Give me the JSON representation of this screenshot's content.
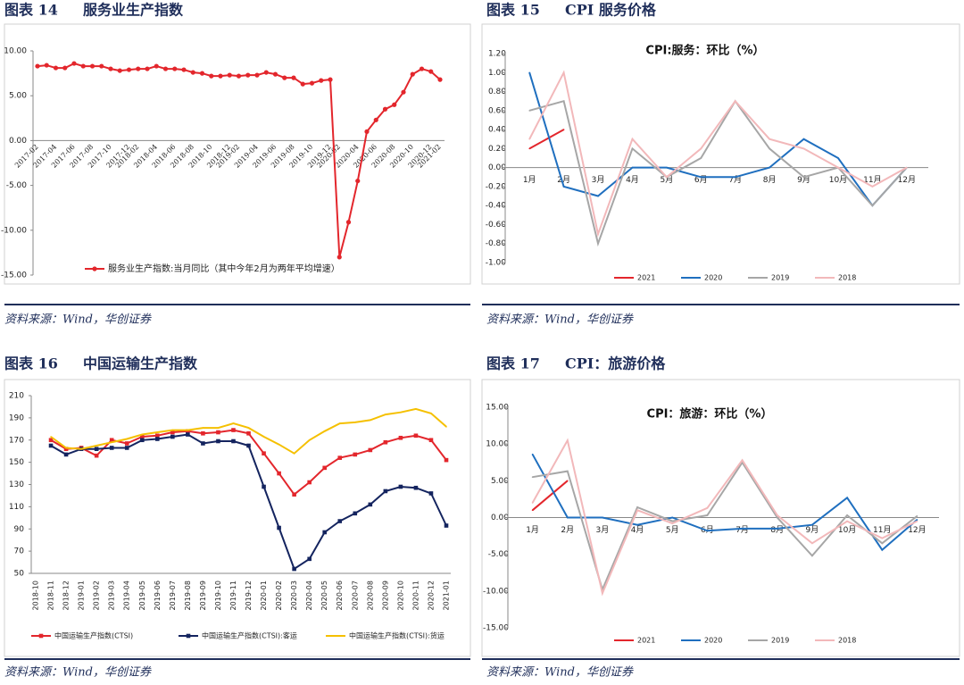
{
  "chart_data": [
    {
      "type": "line",
      "figure_label": "图表 14",
      "title": "服务业生产指数",
      "source": "资料来源：Wind，华创证券",
      "legend": "bottom",
      "categories": [
        "2017-02",
        null,
        "2017-04",
        null,
        "2017-06",
        null,
        "2017-08",
        null,
        "2017-10",
        null,
        "2017-12",
        "2018-02",
        null,
        "2018-04",
        null,
        "2018-06",
        null,
        "2018-08",
        null,
        "2018-10",
        null,
        "2018-12",
        "2019-02",
        null,
        "2019-04",
        null,
        "2019-06",
        null,
        "2019-08",
        null,
        "2019-10",
        null,
        "2019-12",
        "2020-02",
        null,
        "2020-04",
        null,
        "2020-06",
        null,
        "2020-08",
        null,
        "2020-10",
        null,
        "2020-12",
        "2021-02"
      ],
      "series": [
        {
          "name": "服务业生产指数:当月同比（其中今年2月为两年平均增速）",
          "color": "#e3262c",
          "values": [
            8.3,
            8.4,
            8.1,
            8.1,
            8.6,
            8.3,
            8.3,
            8.3,
            8.0,
            7.8,
            7.9,
            8.0,
            8.0,
            8.3,
            8.0,
            8.0,
            7.9,
            7.6,
            7.5,
            7.2,
            7.2,
            7.3,
            7.2,
            7.3,
            7.3,
            7.6,
            7.4,
            7.0,
            7.0,
            6.3,
            6.4,
            6.7,
            6.8,
            -13.0,
            -9.1,
            -4.5,
            1.0,
            2.3,
            3.5,
            4.0,
            5.4,
            7.4,
            8.0,
            7.7,
            6.8
          ]
        }
      ],
      "ylim": [
        -15,
        10
      ],
      "yticks": [
        {
          "value": 10,
          "label": "10.00"
        },
        {
          "value": 5,
          "label": "5.00"
        },
        {
          "value": 0,
          "label": "0.00"
        },
        {
          "value": -5,
          "label": "-5.00"
        },
        {
          "value": -10,
          "label": "-10.00"
        },
        {
          "value": -15,
          "label": "-15.00"
        }
      ]
    },
    {
      "type": "line",
      "figure_label": "图表 15",
      "title": "CPI 服务价格",
      "chart_title": "CPI:服务：环比（%）",
      "source": "资料来源：Wind，华创证券",
      "legend": "bottom",
      "categories": [
        "1月",
        "2月",
        "3月",
        "4月",
        "5月",
        "6月",
        "7月",
        "8月",
        "9月",
        "10月",
        "11月",
        "12月"
      ],
      "series": [
        {
          "name": "2021",
          "color": "#e3262c",
          "values": [
            0.2,
            0.4,
            null,
            null,
            null,
            null,
            null,
            null,
            null,
            null,
            null,
            null
          ]
        },
        {
          "name": "2020",
          "color": "#1f6fbf",
          "values": [
            1.0,
            -0.2,
            -0.3,
            0.0,
            0.0,
            -0.1,
            -0.1,
            0.0,
            0.3,
            0.1,
            -0.4,
            0.0
          ]
        },
        {
          "name": "2019",
          "color": "#a6a6a6",
          "values": [
            0.6,
            0.7,
            -0.8,
            0.2,
            -0.1,
            0.1,
            0.7,
            0.2,
            -0.1,
            0.0,
            -0.4,
            0.0
          ]
        },
        {
          "name": "2018",
          "color": "#f2b8ba",
          "values": [
            0.3,
            1.0,
            -0.7,
            0.3,
            -0.1,
            0.2,
            0.7,
            0.3,
            0.2,
            0.0,
            -0.2,
            0.0
          ]
        }
      ],
      "ylim": [
        -1,
        1.2
      ],
      "yticks": [
        {
          "value": 1.2,
          "label": "1.20"
        },
        {
          "value": 1,
          "label": "1.00"
        },
        {
          "value": 0.8,
          "label": "0.80"
        },
        {
          "value": 0.6,
          "label": "0.60"
        },
        {
          "value": 0.4,
          "label": "0.40"
        },
        {
          "value": 0.2,
          "label": "0.20"
        },
        {
          "value": 0,
          "label": "0.00"
        },
        {
          "value": -0.2,
          "label": "-0.20"
        },
        {
          "value": -0.4,
          "label": "-0.40"
        },
        {
          "value": -0.6,
          "label": "-0.60"
        },
        {
          "value": -0.8,
          "label": "-0.80"
        },
        {
          "value": -1,
          "label": "-1.00"
        }
      ]
    },
    {
      "type": "line",
      "figure_label": "图表 16",
      "title": "中国运输生产指数",
      "source": "资料来源：Wind，华创证券",
      "legend": "bottom",
      "categories": [
        "2018-10",
        "2018-11",
        "2018-12",
        "2019-01",
        "2019-02",
        "2019-03",
        "2019-04",
        "2019-05",
        "2019-06",
        "2019-07",
        "2019-08",
        "2019-09",
        "2019-10",
        "2019-11",
        "2019-12",
        "2020-01",
        "2020-02",
        "2020-03",
        "2020-04",
        "2020-05",
        "2020-06",
        "2020-07",
        "2020-08",
        "2020-09",
        "2020-10",
        "2020-11",
        "2020-12",
        "2021-01"
      ],
      "series": [
        {
          "name": "中国运输生产指数(CTSI)",
          "color": "#e3262c",
          "values": [
            null,
            170,
            162,
            163,
            156,
            170,
            167,
            173,
            174,
            177,
            178,
            176,
            177,
            179,
            176,
            158,
            140,
            121,
            132,
            145,
            154,
            157,
            161,
            168,
            172,
            174,
            170,
            152
          ]
        },
        {
          "name": "中国运输生产指数(CTSI):客运",
          "color": "#14245f",
          "values": [
            null,
            165,
            157,
            162,
            162,
            163,
            163,
            170,
            171,
            173,
            175,
            167,
            169,
            169,
            165,
            128,
            91,
            54,
            63,
            87,
            97,
            104,
            112,
            124,
            128,
            127,
            122,
            93
          ]
        },
        {
          "name": "中国运输生产指数(CTSI):货运",
          "color": "#f5c000",
          "values": [
            null,
            173,
            163,
            162,
            165,
            168,
            171,
            175,
            177,
            179,
            179,
            181,
            181,
            185,
            181,
            173,
            166,
            158,
            170,
            178,
            185,
            186,
            188,
            193,
            195,
            198,
            194,
            182
          ]
        }
      ],
      "ylim": [
        50,
        210
      ],
      "yticks": [
        50,
        70,
        90,
        110,
        130,
        150,
        170,
        190,
        210
      ]
    },
    {
      "type": "line",
      "figure_label": "图表 17",
      "title": "CPI：旅游价格",
      "chart_title": "CPI：旅游：环比（%）",
      "source": "资料来源：Wind，华创证券",
      "legend": "bottom",
      "categories": [
        "1月",
        "2月",
        "3月",
        "4月",
        "5月",
        "6月",
        "7月",
        "8月",
        "9月",
        "10月",
        "11月",
        "12月"
      ],
      "series": [
        {
          "name": "2021",
          "color": "#e3262c",
          "values": [
            1.0,
            5.0,
            null,
            null,
            null,
            null,
            null,
            null,
            null,
            null,
            null,
            null
          ]
        },
        {
          "name": "2020",
          "color": "#1f6fbf",
          "values": [
            8.6,
            0.0,
            0.0,
            -1.0,
            0.0,
            -1.8,
            -1.5,
            -1.5,
            -1.0,
            2.7,
            -4.4,
            -0.3
          ]
        },
        {
          "name": "2019",
          "color": "#a6a6a6",
          "values": [
            5.5,
            6.3,
            -9.8,
            1.4,
            -0.5,
            0.3,
            7.5,
            0.0,
            -5.2,
            0.3,
            -3.5,
            0.2
          ]
        },
        {
          "name": "2018",
          "color": "#f2b8ba",
          "values": [
            2.0,
            10.5,
            -10.3,
            1.0,
            -0.8,
            1.3,
            7.8,
            0.3,
            -3.5,
            -0.5,
            -2.8,
            -0.5
          ]
        }
      ],
      "ylim": [
        -15,
        15
      ],
      "yticks": [
        {
          "value": 15,
          "label": "15.00"
        },
        {
          "value": 10,
          "label": "10.00"
        },
        {
          "value": 5,
          "label": "5.00"
        },
        {
          "value": 0,
          "label": "0.00"
        },
        {
          "value": -5,
          "label": "-5.00"
        },
        {
          "value": -10,
          "label": "-10.00"
        },
        {
          "value": -15,
          "label": "-15.00"
        }
      ]
    }
  ]
}
